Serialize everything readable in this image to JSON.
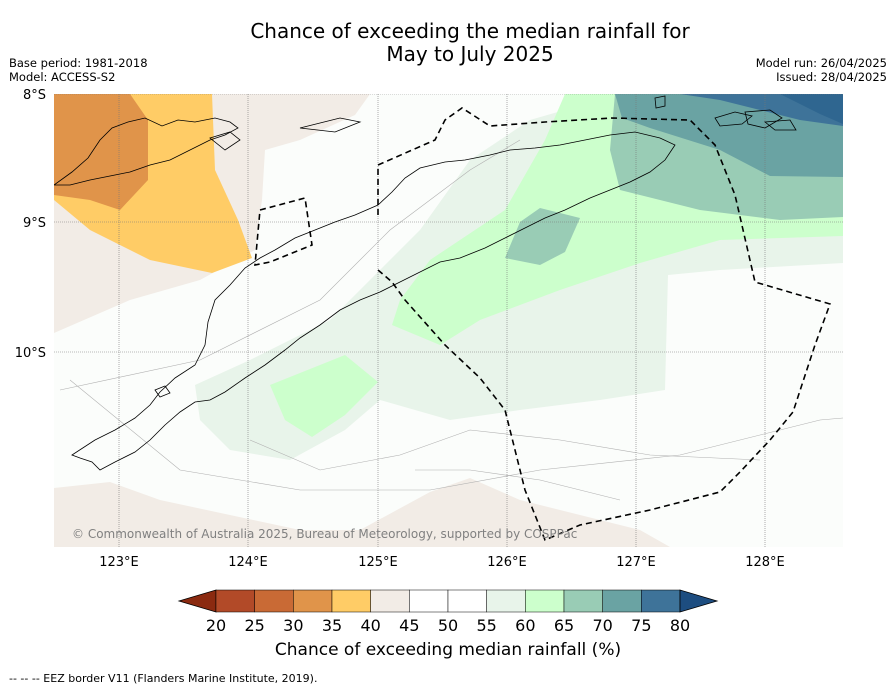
{
  "title": {
    "line1": "Chance of exceeding the median rainfall for",
    "line2": "May to July 2025"
  },
  "meta": {
    "base_period": "Base period: 1981-2018",
    "model": "Model: ACCESS-S2",
    "model_run": "Model run: 26/04/2025",
    "issued": "Issued: 28/04/2025"
  },
  "map": {
    "lat_labels": [
      "8°S",
      "9°S",
      "10°S"
    ],
    "lon_labels": [
      "123°E",
      "124°E",
      "125°E",
      "126°E",
      "127°E",
      "128°E"
    ],
    "copyright": "© Commonwealth of Australia 2025, Bureau of Meteorology, supported by COSPPac"
  },
  "colorbar": {
    "ticks": [
      "20",
      "25",
      "30",
      "35",
      "40",
      "45",
      "50",
      "55",
      "60",
      "65",
      "70",
      "75",
      "80"
    ],
    "colors": [
      "#8b2a10",
      "#b24a28",
      "#c96a35",
      "#e0944a",
      "#ffcc66",
      "#f2ece6",
      "#ffffff",
      "#ffffff",
      "#e8f4ea",
      "#ccffcc",
      "#99ccb5",
      "#6aa3a3",
      "#3e7399",
      "#1d4d80"
    ],
    "label": "Chance of exceeding median rainfall (%)"
  },
  "footnote": "--  --  -- EEZ border V11 (Flanders Marine Institute, 2019)."
}
